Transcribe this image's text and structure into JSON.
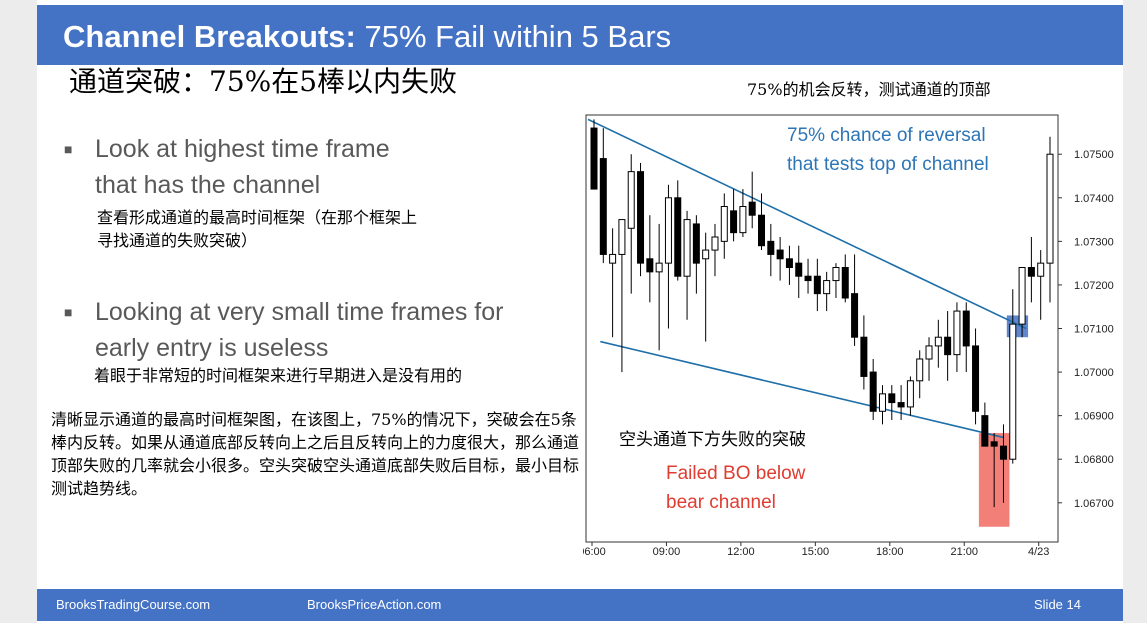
{
  "slide": {
    "title_bold": "Channel Breakouts:",
    "title_rest": " 75% Fail within 5 Bars",
    "cn_title": "通道突破：75%在5棒以内失败",
    "cn_annotation": "75%的机会反转，测试通道的顶部",
    "bullets": [
      {
        "line1": "Look at highest time frame",
        "line2": "that has the channel",
        "cn1": "查看形成通道的最高时间框架（在那个框架上",
        "cn2": "寻找通道的失败突破）"
      },
      {
        "line1": "Looking at very small time frames for",
        "line2": "early entry is useless",
        "cn1": "着眼于非常短的时间框架来进行早期进入是没有用的"
      }
    ],
    "cn_paragraph": "清晰显示通道的最高时间框架图，在该图上，75%的情况下，突破会在5条棒内反转。如果从通道底部反转向上之后且反转向上的力度很大，那么通道顶部失败的几率就会小很多。空头突破空头通道底部失败后目标，最小目标测试趋势线。",
    "footer": {
      "left": "BrooksTradingCourse.com",
      "center": "BrooksPriceAction.com",
      "right": "Slide  14"
    }
  },
  "chart_data": {
    "type": "candlestick",
    "x_ticks": [
      "06:00",
      "09:00",
      "12:00",
      "15:00",
      "18:00",
      "21:00",
      "4/23"
    ],
    "y_ticks": [
      "1.07500",
      "1.07400",
      "1.07300",
      "1.07200",
      "1.07100",
      "1.07000",
      "1.06900",
      "1.06800",
      "1.06700"
    ],
    "ylim": [
      1.0661,
      1.0759
    ],
    "annotations": {
      "top_en1": "75% chance of reversal",
      "top_en2": "that tests top of channel",
      "bottom_cn": "空头通道下方失败的突破",
      "bottom_en1": "Failed BO below",
      "bottom_en2": "bear channel"
    },
    "colors": {
      "line": "#1f6fa8",
      "up_annot": "#2e75b6",
      "down_annot": "#e03c31",
      "blue_box": "#4472c4",
      "red_box": "#f06a60"
    },
    "candles": [
      [
        1.0756,
        1.0758,
        1.0742,
        1.0742
      ],
      [
        1.0749,
        1.0756,
        1.0725,
        1.0727
      ],
      [
        1.0725,
        1.0733,
        1.0708,
        1.0727
      ],
      [
        1.0727,
        1.0735,
        1.07,
        1.0735
      ],
      [
        1.0733,
        1.075,
        1.0718,
        1.0746
      ],
      [
        1.0746,
        1.0748,
        1.0722,
        1.0725
      ],
      [
        1.0726,
        1.0736,
        1.0716,
        1.0723
      ],
      [
        1.0723,
        1.0734,
        1.0705,
        1.0725
      ],
      [
        1.0725,
        1.0743,
        1.071,
        1.074
      ],
      [
        1.074,
        1.0744,
        1.0721,
        1.0722
      ],
      [
        1.0722,
        1.0737,
        1.0712,
        1.0735
      ],
      [
        1.0734,
        1.0736,
        1.0718,
        1.0725
      ],
      [
        1.0726,
        1.0732,
        1.0707,
        1.0728
      ],
      [
        1.0728,
        1.0734,
        1.0722,
        1.0731
      ],
      [
        1.073,
        1.0741,
        1.0726,
        1.0738
      ],
      [
        1.0737,
        1.0742,
        1.073,
        1.0732
      ],
      [
        1.0732,
        1.0742,
        1.0731,
        1.0738
      ],
      [
        1.0739,
        1.0746,
        1.0733,
        1.0736
      ],
      [
        1.0736,
        1.0741,
        1.0728,
        1.0729
      ],
      [
        1.073,
        1.0734,
        1.0722,
        1.0727
      ],
      [
        1.0728,
        1.0731,
        1.0721,
        1.0726
      ],
      [
        1.0726,
        1.0729,
        1.072,
        1.0724
      ],
      [
        1.0725,
        1.0729,
        1.0717,
        1.0722
      ],
      [
        1.0722,
        1.0726,
        1.0718,
        1.0721
      ],
      [
        1.0722,
        1.0726,
        1.0714,
        1.0718
      ],
      [
        1.0718,
        1.0723,
        1.0714,
        1.0721
      ],
      [
        1.0721,
        1.0725,
        1.0717,
        1.0724
      ],
      [
        1.0724,
        1.0727,
        1.0716,
        1.0717
      ],
      [
        1.0718,
        1.0727,
        1.0706,
        1.0708
      ],
      [
        1.0708,
        1.0713,
        1.0696,
        1.0699
      ],
      [
        1.07,
        1.0703,
        1.0689,
        1.0691
      ],
      [
        1.0691,
        1.0697,
        1.0688,
        1.0695
      ],
      [
        1.0695,
        1.0697,
        1.0689,
        1.0693
      ],
      [
        1.0693,
        1.0697,
        1.0689,
        1.0692
      ],
      [
        1.0692,
        1.0699,
        1.069,
        1.0698
      ],
      [
        1.0698,
        1.0705,
        1.0694,
        1.0703
      ],
      [
        1.0703,
        1.0708,
        1.0698,
        1.0706
      ],
      [
        1.0706,
        1.0712,
        1.0701,
        1.0708
      ],
      [
        1.0708,
        1.0714,
        1.0698,
        1.0704
      ],
      [
        1.0704,
        1.0716,
        1.07,
        1.0714
      ],
      [
        1.0714,
        1.0716,
        1.07,
        1.0706
      ],
      [
        1.0706,
        1.071,
        1.0688,
        1.0691
      ],
      [
        1.069,
        1.0693,
        1.0683,
        1.0683
      ],
      [
        1.0684,
        1.0686,
        1.0669,
        1.0683
      ],
      [
        1.0683,
        1.0688,
        1.067,
        1.068
      ],
      [
        1.068,
        1.0719,
        1.0679,
        1.0711
      ],
      [
        1.0711,
        1.0724,
        1.0708,
        1.0724
      ],
      [
        1.0724,
        1.0731,
        1.0716,
        1.0722
      ],
      [
        1.0722,
        1.0728,
        1.0712,
        1.0725
      ],
      [
        1.0725,
        1.0754,
        1.0716,
        1.075
      ]
    ]
  }
}
